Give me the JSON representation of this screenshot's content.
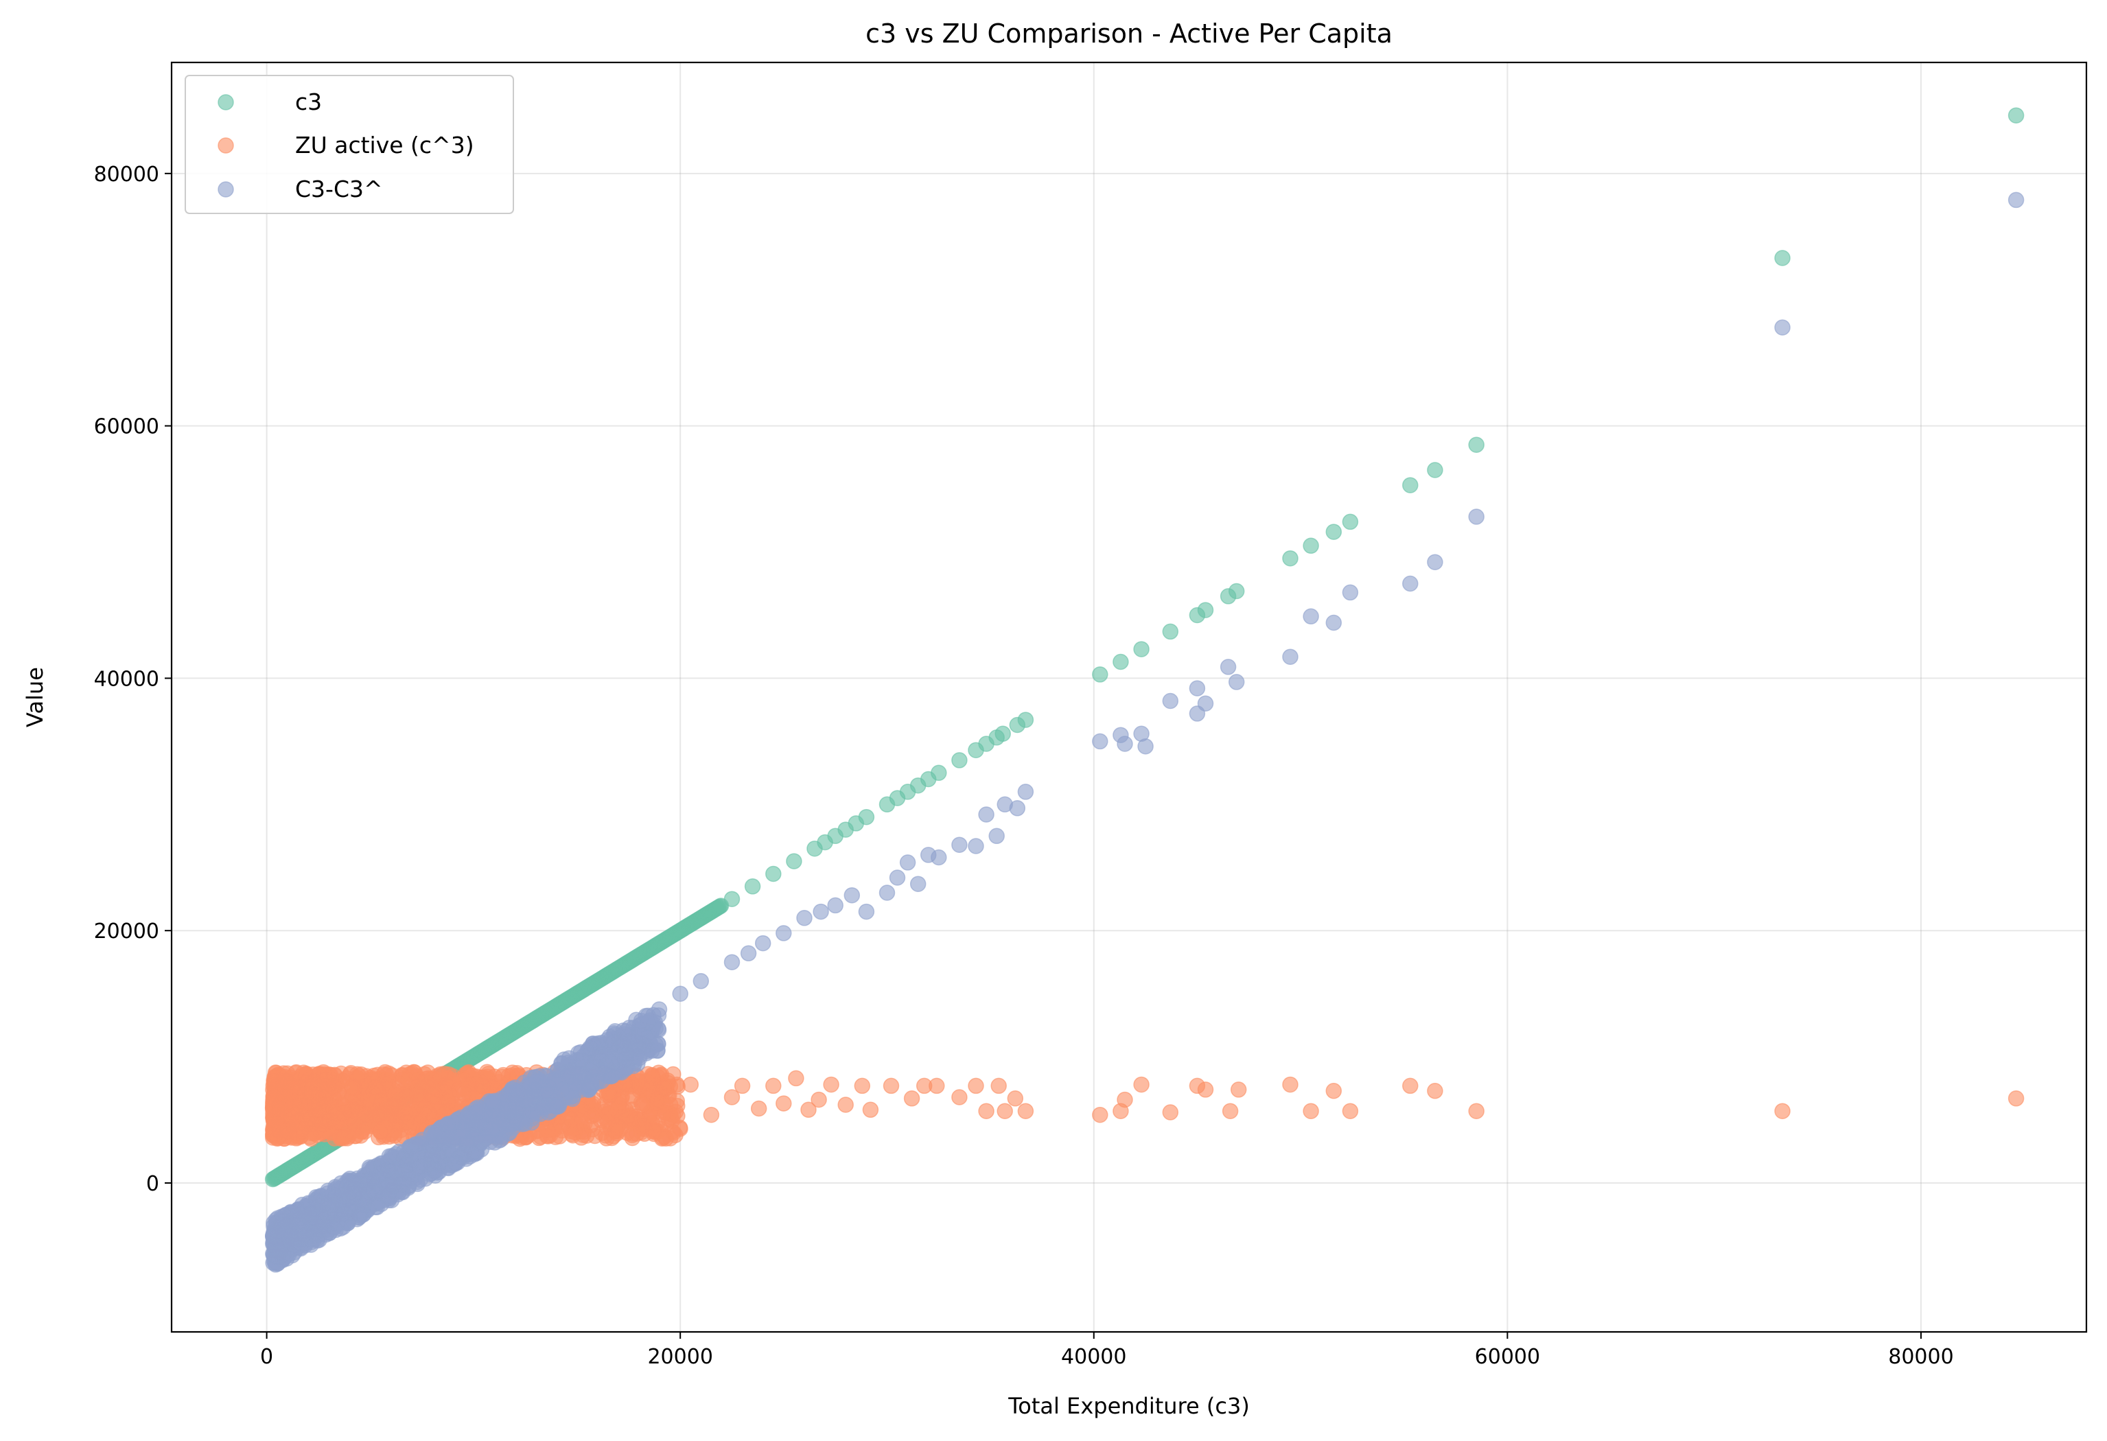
{
  "chart_data": {
    "type": "scatter",
    "title": "c3 vs ZU Comparison - Active Per Capita",
    "xlabel": "Total Expenditure (c3)",
    "ylabel": "Value",
    "xlim": [
      -4600,
      88000
    ],
    "ylim": [
      -11800,
      88800
    ],
    "xticks": [
      0,
      20000,
      40000,
      60000,
      80000
    ],
    "yticks": [
      0,
      20000,
      40000,
      60000,
      80000
    ],
    "grid": true,
    "legend_position": "top-left",
    "series": [
      {
        "name": "c3",
        "color": "#66c2a5",
        "dense_band": {
          "x_from": 300,
          "x_to": 22000,
          "rule": "y = x"
        },
        "points": [
          [
            22500,
            22500
          ],
          [
            23500,
            23500
          ],
          [
            24500,
            24500
          ],
          [
            25500,
            25500
          ],
          [
            26500,
            26500
          ],
          [
            27000,
            27000
          ],
          [
            27500,
            27500
          ],
          [
            28000,
            28000
          ],
          [
            28500,
            28500
          ],
          [
            29000,
            29000
          ],
          [
            30000,
            30000
          ],
          [
            30500,
            30500
          ],
          [
            31000,
            31000
          ],
          [
            31500,
            31500
          ],
          [
            32000,
            32000
          ],
          [
            32500,
            32500
          ],
          [
            33500,
            33500
          ],
          [
            34300,
            34300
          ],
          [
            34800,
            34800
          ],
          [
            35300,
            35300
          ],
          [
            35600,
            35600
          ],
          [
            36300,
            36300
          ],
          [
            36700,
            36700
          ],
          [
            40300,
            40300
          ],
          [
            41300,
            41300
          ],
          [
            42300,
            42300
          ],
          [
            43700,
            43700
          ],
          [
            45000,
            45000
          ],
          [
            45400,
            45400
          ],
          [
            46500,
            46500
          ],
          [
            46900,
            46900
          ],
          [
            49500,
            49500
          ],
          [
            50500,
            50500
          ],
          [
            51600,
            51600
          ],
          [
            52400,
            52400
          ],
          [
            55300,
            55300
          ],
          [
            56500,
            56500
          ],
          [
            58500,
            58500
          ],
          [
            73300,
            73300
          ],
          [
            84600,
            84600
          ]
        ]
      },
      {
        "name": "ZU active (c^3)",
        "color": "#fc8d62",
        "dense_band": {
          "x_from": 300,
          "x_to": 20000,
          "y_from": 3500,
          "y_to": 8800
        },
        "points": [
          [
            20500,
            7800
          ],
          [
            21500,
            5400
          ],
          [
            22500,
            6800
          ],
          [
            23000,
            7700
          ],
          [
            23800,
            5900
          ],
          [
            24500,
            7700
          ],
          [
            25000,
            6300
          ],
          [
            25600,
            8300
          ],
          [
            26200,
            5800
          ],
          [
            26700,
            6600
          ],
          [
            27300,
            7800
          ],
          [
            28000,
            6200
          ],
          [
            28800,
            7700
          ],
          [
            29200,
            5800
          ],
          [
            30200,
            7700
          ],
          [
            31200,
            6700
          ],
          [
            31800,
            7700
          ],
          [
            32400,
            7700
          ],
          [
            33500,
            6800
          ],
          [
            34300,
            7700
          ],
          [
            34800,
            5700
          ],
          [
            35400,
            7700
          ],
          [
            35700,
            5700
          ],
          [
            36200,
            6700
          ],
          [
            36700,
            5700
          ],
          [
            40300,
            5400
          ],
          [
            41300,
            5700
          ],
          [
            41500,
            6600
          ],
          [
            42300,
            7800
          ],
          [
            43700,
            5600
          ],
          [
            45000,
            7700
          ],
          [
            45400,
            7400
          ],
          [
            46600,
            5700
          ],
          [
            47000,
            7400
          ],
          [
            49500,
            7800
          ],
          [
            50500,
            5700
          ],
          [
            51600,
            7300
          ],
          [
            52400,
            5700
          ],
          [
            55300,
            7700
          ],
          [
            56500,
            7300
          ],
          [
            58500,
            5700
          ],
          [
            73300,
            5700
          ],
          [
            84600,
            6700
          ]
        ]
      },
      {
        "name": "C3-C3^",
        "color": "#8da0cb",
        "dense_band": {
          "x_from": 300,
          "x_to": 19000,
          "y_at_x_from": -4000,
          "y_at_x_to": 13000
        },
        "points": [
          [
            20000,
            15000
          ],
          [
            21000,
            16000
          ],
          [
            22500,
            17500
          ],
          [
            23300,
            18200
          ],
          [
            24000,
            19000
          ],
          [
            25000,
            19800
          ],
          [
            26000,
            21000
          ],
          [
            26800,
            21500
          ],
          [
            27500,
            22000
          ],
          [
            28300,
            22800
          ],
          [
            29000,
            21500
          ],
          [
            30000,
            23000
          ],
          [
            30500,
            24200
          ],
          [
            31000,
            25400
          ],
          [
            31500,
            23700
          ],
          [
            32000,
            26000
          ],
          [
            32500,
            25800
          ],
          [
            33500,
            26800
          ],
          [
            34300,
            26700
          ],
          [
            34800,
            29200
          ],
          [
            35300,
            27500
          ],
          [
            35700,
            30000
          ],
          [
            36300,
            29700
          ],
          [
            36700,
            31000
          ],
          [
            40300,
            35000
          ],
          [
            41300,
            35500
          ],
          [
            41500,
            34800
          ],
          [
            42300,
            35600
          ],
          [
            42500,
            34600
          ],
          [
            43700,
            38200
          ],
          [
            45000,
            39200
          ],
          [
            45000,
            37200
          ],
          [
            45400,
            38000
          ],
          [
            46500,
            40900
          ],
          [
            46900,
            39700
          ],
          [
            49500,
            41700
          ],
          [
            50500,
            44900
          ],
          [
            51600,
            44400
          ],
          [
            52400,
            46800
          ],
          [
            55300,
            47500
          ],
          [
            56500,
            49200
          ],
          [
            58500,
            52800
          ],
          [
            73300,
            67800
          ],
          [
            84600,
            77900
          ]
        ]
      }
    ]
  }
}
